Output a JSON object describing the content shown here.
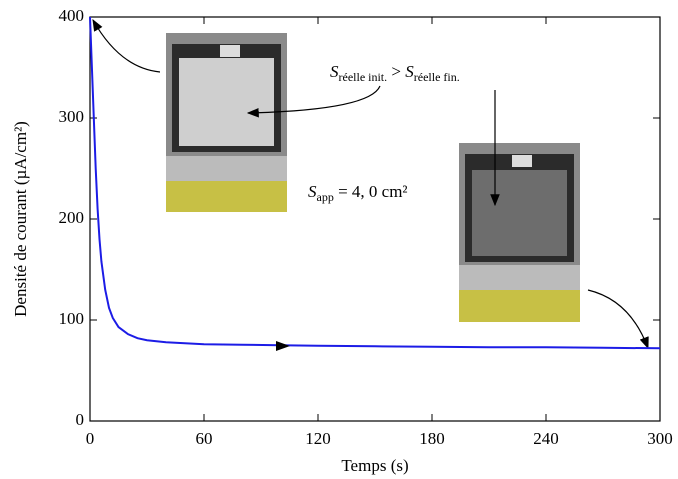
{
  "chart_data": {
    "type": "line",
    "x_label": "Temps (s)",
    "y_label": "Densité de courant (µA/cm²)",
    "x": [
      0,
      1,
      2,
      3,
      4,
      5,
      6,
      8,
      10,
      12,
      15,
      20,
      25,
      30,
      40,
      50,
      60,
      80,
      100,
      120,
      150,
      180,
      210,
      240,
      270,
      300
    ],
    "series": [
      {
        "name": null,
        "color": "#1c1ce6",
        "values": [
          400,
          350,
          300,
          250,
          210,
          180,
          158,
          130,
          112,
          102,
          93,
          86,
          82,
          80,
          78,
          77,
          76,
          75.5,
          75,
          74.5,
          74,
          73.5,
          73,
          73,
          72.5,
          72
        ]
      }
    ],
    "xlim": [
      0,
      300
    ],
    "xticks": [
      0,
      60,
      120,
      180,
      240,
      300
    ],
    "ylim": [
      0,
      400
    ],
    "yticks": [
      0,
      100,
      200,
      300,
      400
    ],
    "annotations": [
      [
        {
          "text": "S",
          "style": "italic"
        },
        {
          "text": "réelle init.",
          "style": "sub"
        },
        {
          "text": " > ",
          "style": "normal"
        },
        {
          "text": "S",
          "style": "italic"
        },
        {
          "text": "réelle fin.",
          "style": "sub"
        }
      ],
      [
        {
          "text": "S",
          "style": "italic"
        },
        {
          "text": "app",
          "style": "sub"
        },
        {
          "text": " = 4, 0 cm²",
          "style": "normal"
        }
      ]
    ]
  }
}
